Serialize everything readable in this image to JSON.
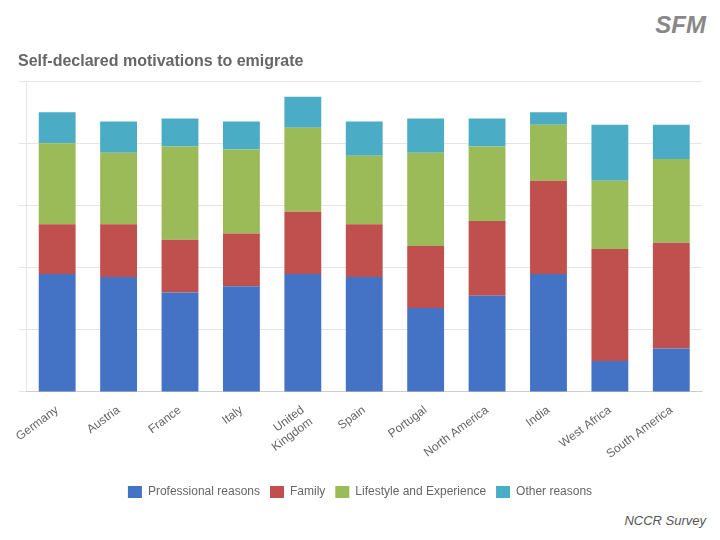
{
  "chart_data": {
    "type": "bar",
    "title": "Self-declared motivations to emigrate",
    "categories": [
      "Germany",
      "Austria",
      "France",
      "Italy",
      "United\nKingdom",
      "Spain",
      "Portugal",
      "North America",
      "India",
      "West Africa",
      "South America"
    ],
    "series": [
      {
        "name": "Professional reasons",
        "color": "#4472c4",
        "values": [
          38,
          37,
          32,
          34,
          38,
          37,
          27,
          31,
          38,
          10,
          14
        ]
      },
      {
        "name": "Family",
        "color": "#c0504d",
        "values": [
          16,
          17,
          17,
          17,
          20,
          17,
          20,
          24,
          30,
          36,
          34
        ]
      },
      {
        "name": "Lifestyle and Experience",
        "color": "#9bbb59",
        "values": [
          26,
          23,
          30,
          27,
          27,
          22,
          30,
          24,
          18,
          22,
          27
        ]
      },
      {
        "name": "Other reasons",
        "color": "#4bacc6",
        "values": [
          10,
          10,
          9,
          9,
          10,
          11,
          11,
          9,
          4,
          18,
          11
        ]
      }
    ],
    "stacked": true,
    "ylim": [
      0,
      100
    ],
    "yticks": [
      0,
      20,
      40,
      60,
      80,
      100
    ],
    "grid": true,
    "tick_labels": "x",
    "legend": "bottom",
    "annotations": [
      "SFM",
      "NCCR Survey"
    ]
  }
}
